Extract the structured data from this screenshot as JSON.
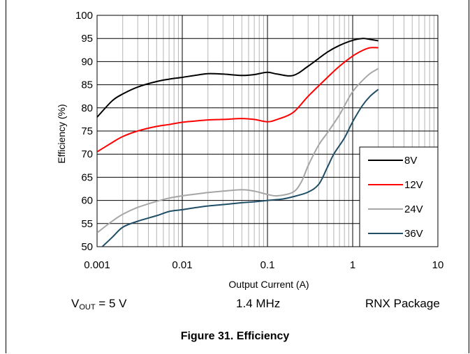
{
  "captions": {
    "vout_prefix": "V",
    "vout_sub": "OUT",
    "vout_rest": " = 5 V",
    "frequency": "1.4 MHz",
    "package": "RNX Package"
  },
  "figure_title": "Figure 31. Efficiency",
  "chart_data": {
    "type": "line",
    "xlabel": "Output Current (A)",
    "ylabel": "Efficiency (%)",
    "xscale": "log",
    "xlim": [
      0.001,
      10
    ],
    "ylim": [
      50,
      100
    ],
    "x_ticks": [
      "0.001",
      "0.01",
      "0.1",
      "1",
      "10"
    ],
    "y_ticks": [
      "50",
      "55",
      "60",
      "65",
      "70",
      "75",
      "80",
      "85",
      "90",
      "95",
      "100"
    ],
    "grid": true,
    "legend_position": "bottom-right",
    "series": [
      {
        "name": "8V",
        "color": "#000000",
        "x": [
          0.001,
          0.0015,
          0.002,
          0.003,
          0.005,
          0.007,
          0.01,
          0.015,
          0.02,
          0.03,
          0.05,
          0.07,
          0.1,
          0.13,
          0.2,
          0.3,
          0.5,
          0.7,
          1.0,
          1.3,
          1.6,
          2.0
        ],
        "y": [
          78,
          81.5,
          83,
          84.5,
          85.7,
          86.2,
          86.6,
          87.1,
          87.4,
          87.3,
          87.0,
          87.2,
          87.7,
          87.3,
          87.0,
          89.0,
          92.0,
          93.5,
          94.6,
          95.0,
          94.8,
          94.5
        ]
      },
      {
        "name": "12V",
        "color": "#ff0000",
        "x": [
          0.001,
          0.0015,
          0.002,
          0.003,
          0.005,
          0.007,
          0.01,
          0.015,
          0.02,
          0.03,
          0.05,
          0.07,
          0.1,
          0.13,
          0.2,
          0.3,
          0.5,
          0.7,
          1.0,
          1.3,
          1.6,
          2.0
        ],
        "y": [
          70.5,
          72.5,
          73.8,
          75.0,
          76.0,
          76.4,
          76.9,
          77.2,
          77.4,
          77.5,
          77.7,
          77.5,
          77.0,
          77.5,
          79.0,
          82.5,
          86.5,
          89.0,
          91.2,
          92.4,
          93.0,
          93.0
        ]
      },
      {
        "name": "24V",
        "color": "#a6a6a6",
        "x": [
          0.001,
          0.0015,
          0.002,
          0.003,
          0.005,
          0.007,
          0.01,
          0.015,
          0.02,
          0.03,
          0.05,
          0.07,
          0.1,
          0.13,
          0.2,
          0.25,
          0.3,
          0.4,
          0.5,
          0.7,
          1.0,
          1.5,
          2.0
        ],
        "y": [
          53,
          55.5,
          57,
          58.5,
          59.8,
          60.5,
          61.0,
          61.4,
          61.7,
          62.0,
          62.3,
          62.0,
          61.3,
          61.0,
          61.8,
          64.0,
          67.5,
          72.0,
          74.5,
          78.5,
          83.5,
          87.0,
          88.5
        ]
      },
      {
        "name": "36V",
        "color": "#1f4e66",
        "x": [
          0.00115,
          0.0015,
          0.002,
          0.003,
          0.005,
          0.007,
          0.01,
          0.015,
          0.02,
          0.03,
          0.05,
          0.07,
          0.1,
          0.15,
          0.2,
          0.3,
          0.4,
          0.5,
          0.6,
          0.8,
          1.0,
          1.3,
          1.6,
          2.0
        ],
        "y": [
          50,
          52,
          54.2,
          55.5,
          56.7,
          57.6,
          58.0,
          58.5,
          58.8,
          59.1,
          59.5,
          59.7,
          60.0,
          60.3,
          60.8,
          61.8,
          63.5,
          67.0,
          70.0,
          73.5,
          77.0,
          80.5,
          82.5,
          84.0
        ]
      }
    ]
  }
}
